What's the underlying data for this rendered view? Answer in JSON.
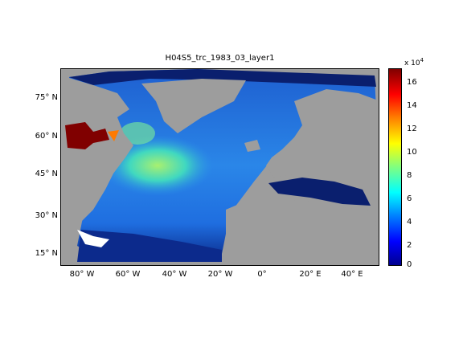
{
  "title": "H04S5_trc_1983_03_layer1",
  "y_ticks": [
    "75° N",
    "60° N",
    "45° N",
    "30° N",
    "15° N"
  ],
  "x_ticks": [
    "80° W",
    "60° W",
    "40° W",
    "20° W",
    "0°",
    "20° E",
    "40° E"
  ],
  "colorbar": {
    "exponent_prefix": "x 10",
    "exponent": "4",
    "ticks": [
      "16",
      "14",
      "12",
      "10",
      "8",
      "6",
      "4",
      "2",
      "0"
    ],
    "colormap": "jet",
    "range": [
      0,
      170000
    ]
  },
  "colors": {
    "land": "#9d9d9d",
    "low_value": "#0a1f6e",
    "high_value": "#800000"
  }
}
